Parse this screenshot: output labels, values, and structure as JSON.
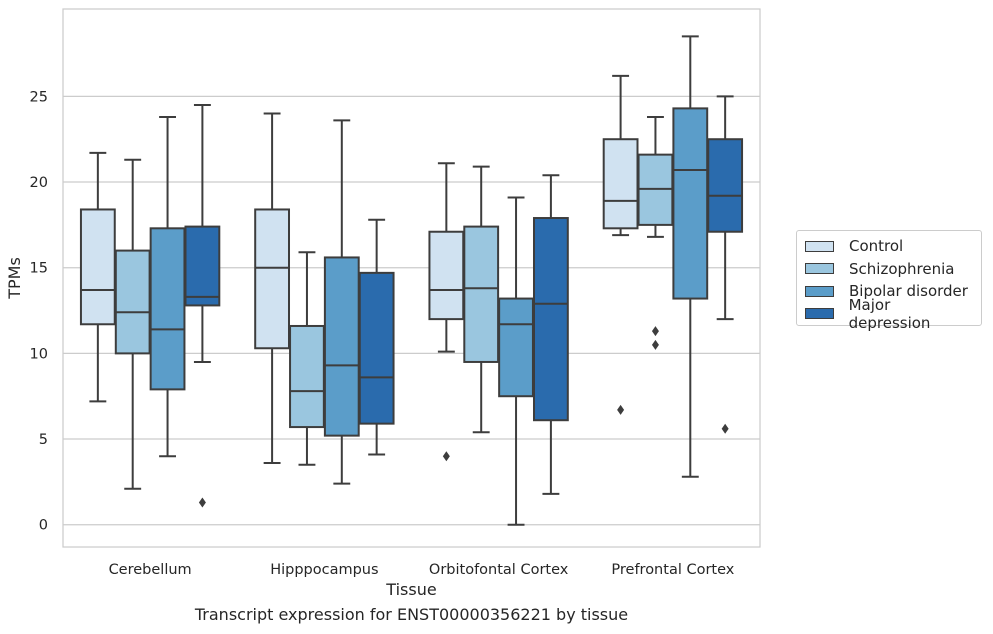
{
  "chart_data": {
    "type": "box",
    "xlabel": "Tissue",
    "ylabel": "TPMs",
    "caption": "Transcript expression for ENST00000356221 by tissue",
    "ylim": [
      -1.3,
      30.1
    ],
    "yticks": [
      0,
      5,
      10,
      15,
      20,
      25
    ],
    "grid": true,
    "legend_position": "right",
    "categories": [
      "Cerebellum",
      "Hipppocampus",
      "Orbitofontal Cortex",
      "Prefrontal Cortex"
    ],
    "series": [
      {
        "name": "Control",
        "color": "#d0e2f1",
        "boxes": [
          {
            "whisker_low": 7.2,
            "q1": 11.7,
            "median": 13.7,
            "q3": 18.4,
            "whisker_high": 21.7,
            "outliers": []
          },
          {
            "whisker_low": 3.6,
            "q1": 10.3,
            "median": 15.0,
            "q3": 18.4,
            "whisker_high": 24.0,
            "outliers": []
          },
          {
            "whisker_low": 10.1,
            "q1": 12.0,
            "median": 13.7,
            "q3": 17.1,
            "whisker_high": 21.1,
            "outliers": [
              4.0
            ]
          },
          {
            "whisker_low": 16.9,
            "q1": 17.3,
            "median": 18.9,
            "q3": 22.5,
            "whisker_high": 26.2,
            "outliers": [
              6.7
            ]
          }
        ]
      },
      {
        "name": "Schizophrenia",
        "color": "#9ac6df",
        "boxes": [
          {
            "whisker_low": 2.1,
            "q1": 10.0,
            "median": 12.4,
            "q3": 16.0,
            "whisker_high": 21.3,
            "outliers": []
          },
          {
            "whisker_low": 3.5,
            "q1": 5.7,
            "median": 7.8,
            "q3": 11.6,
            "whisker_high": 15.9,
            "outliers": []
          },
          {
            "whisker_low": 5.4,
            "q1": 9.5,
            "median": 13.8,
            "q3": 17.4,
            "whisker_high": 20.9,
            "outliers": []
          },
          {
            "whisker_low": 16.8,
            "q1": 17.5,
            "median": 19.6,
            "q3": 21.6,
            "whisker_high": 23.8,
            "outliers": [
              11.3,
              10.5
            ]
          }
        ]
      },
      {
        "name": "Bipolar disorder",
        "color": "#5b9dc9",
        "boxes": [
          {
            "whisker_low": 4.0,
            "q1": 7.9,
            "median": 11.4,
            "q3": 17.3,
            "whisker_high": 23.8,
            "outliers": []
          },
          {
            "whisker_low": 2.4,
            "q1": 5.2,
            "median": 9.3,
            "q3": 15.6,
            "whisker_high": 23.6,
            "outliers": []
          },
          {
            "whisker_low": 0.0,
            "q1": 7.5,
            "median": 11.7,
            "q3": 13.2,
            "whisker_high": 19.1,
            "outliers": []
          },
          {
            "whisker_low": 2.8,
            "q1": 13.2,
            "median": 20.7,
            "q3": 24.3,
            "whisker_high": 28.5,
            "outliers": []
          }
        ]
      },
      {
        "name": "Major depression",
        "color": "#2a6bad",
        "boxes": [
          {
            "whisker_low": 9.5,
            "q1": 12.8,
            "median": 13.3,
            "q3": 17.4,
            "whisker_high": 24.5,
            "outliers": [
              1.3
            ]
          },
          {
            "whisker_low": 4.1,
            "q1": 5.9,
            "median": 8.6,
            "q3": 14.7,
            "whisker_high": 17.8,
            "outliers": []
          },
          {
            "whisker_low": 1.8,
            "q1": 6.1,
            "median": 12.9,
            "q3": 17.9,
            "whisker_high": 20.4,
            "outliers": []
          },
          {
            "whisker_low": 12.0,
            "q1": 17.1,
            "median": 19.2,
            "q3": 22.5,
            "whisker_high": 25.0,
            "outliers": [
              5.6
            ]
          }
        ]
      }
    ]
  }
}
